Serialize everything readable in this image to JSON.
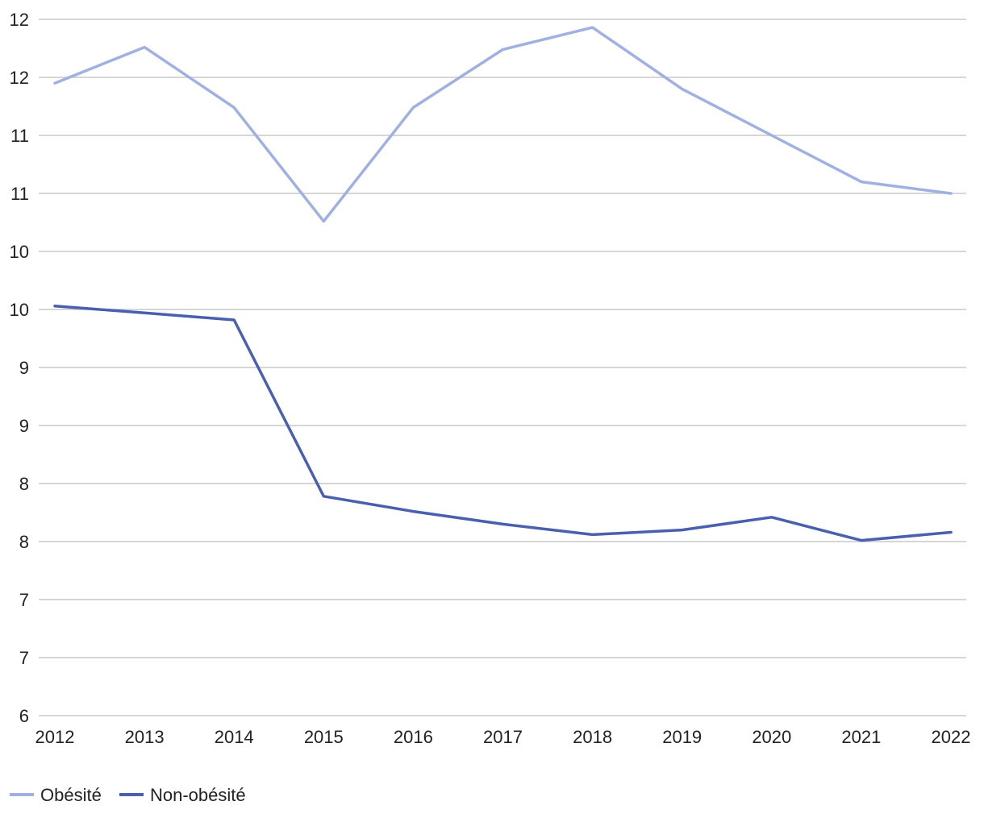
{
  "chart_data": {
    "type": "line",
    "title": "",
    "xlabel": "",
    "ylabel": "",
    "categories": [
      "2012",
      "2013",
      "2014",
      "2015",
      "2016",
      "2017",
      "2018",
      "2019",
      "2020",
      "2021",
      "2022"
    ],
    "ylim": [
      6,
      12
    ],
    "y_tick_values": [
      6,
      6.5,
      7,
      7.5,
      8,
      8.5,
      9,
      9.5,
      10,
      10.5,
      11,
      11.5,
      12
    ],
    "y_tick_labels": [
      "6",
      "7",
      "7",
      "8",
      "8",
      "9",
      "9",
      "10",
      "10",
      "11",
      "11",
      "12",
      "12"
    ],
    "grid": true,
    "legend_position": "bottom-left",
    "series": [
      {
        "name": "Obésité",
        "color": "#9fb1e2",
        "values": [
          11.45,
          11.76,
          11.24,
          10.26,
          11.24,
          11.74,
          11.93,
          11.4,
          11.0,
          10.6,
          10.5
        ]
      },
      {
        "name": "Non-obésité",
        "color": "#4a60ae",
        "values": [
          9.53,
          9.47,
          9.41,
          7.89,
          7.76,
          7.65,
          7.56,
          7.6,
          7.71,
          7.51,
          7.58
        ]
      }
    ]
  }
}
